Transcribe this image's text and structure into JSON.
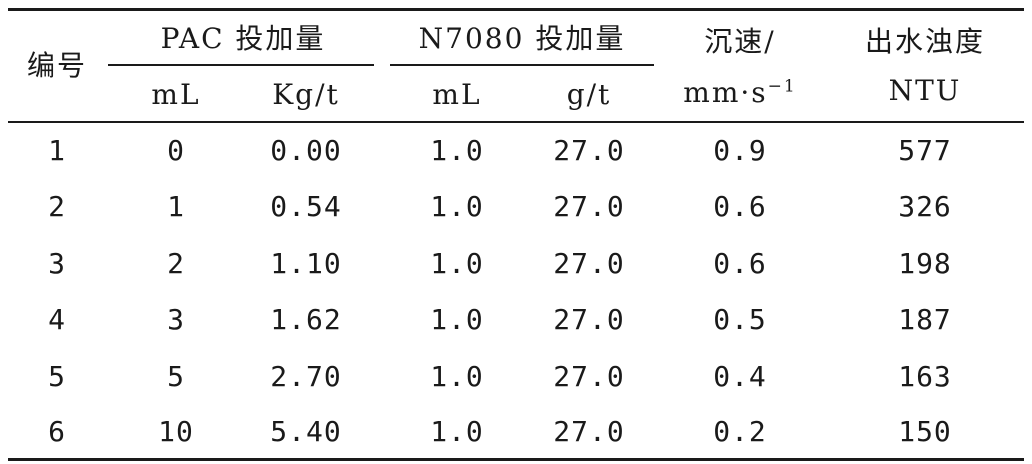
{
  "table": {
    "headers": {
      "id": "编号",
      "pac_group": "PAC 投加量",
      "pac_ml": "mL",
      "pac_kg": "Kg/t",
      "n_group": "N7080 投加量",
      "n_ml": "mL",
      "n_g": "g/t",
      "speed_line1": "沉速/",
      "speed_line2": "mm·s",
      "speed_sup": "−1",
      "turb_line1": "出水浊度",
      "turb_line2": "NTU"
    },
    "rows": [
      {
        "id": "1",
        "pac_ml": "0",
        "pac_kg": "0.00",
        "n_ml": "1.0",
        "n_g": "27.0",
        "speed": "0.9",
        "ntu": "577"
      },
      {
        "id": "2",
        "pac_ml": "1",
        "pac_kg": "0.54",
        "n_ml": "1.0",
        "n_g": "27.0",
        "speed": "0.6",
        "ntu": "326"
      },
      {
        "id": "3",
        "pac_ml": "2",
        "pac_kg": "1.10",
        "n_ml": "1.0",
        "n_g": "27.0",
        "speed": "0.6",
        "ntu": "198"
      },
      {
        "id": "4",
        "pac_ml": "3",
        "pac_kg": "1.62",
        "n_ml": "1.0",
        "n_g": "27.0",
        "speed": "0.5",
        "ntu": "187"
      },
      {
        "id": "5",
        "pac_ml": "5",
        "pac_kg": "2.70",
        "n_ml": "1.0",
        "n_g": "27.0",
        "speed": "0.4",
        "ntu": "163"
      },
      {
        "id": "6",
        "pac_ml": "10",
        "pac_kg": "5.40",
        "n_ml": "1.0",
        "n_g": "27.0",
        "speed": "0.2",
        "ntu": "150"
      }
    ]
  }
}
